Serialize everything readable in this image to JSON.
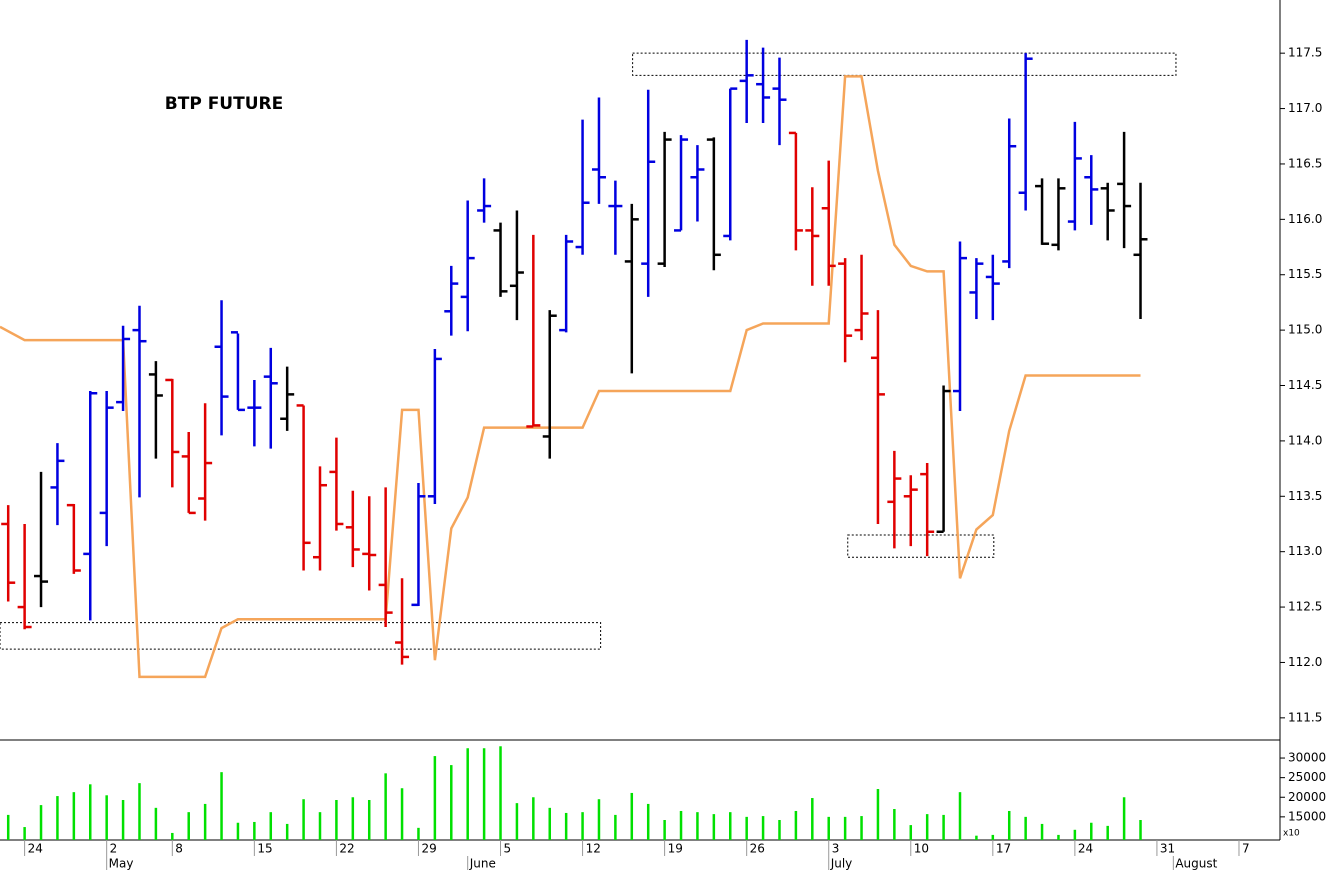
{
  "chart_data": [
    {
      "type": "ohlc",
      "title": "BTP FUTURE",
      "x": [
        0,
        1,
        2,
        3,
        4,
        5,
        6,
        7,
        8,
        9,
        10,
        11,
        12,
        13,
        14,
        15,
        16,
        17,
        18,
        19,
        20,
        21,
        22,
        23,
        24,
        25,
        26,
        27,
        28,
        29,
        30,
        31,
        32,
        33,
        34,
        35,
        36,
        37,
        38,
        39,
        40,
        41,
        42,
        43,
        44,
        45,
        46,
        47,
        48,
        49,
        50,
        51,
        52,
        53,
        54,
        55,
        56,
        57,
        58,
        59,
        60,
        61,
        62,
        63,
        64,
        65,
        66,
        67,
        68,
        69
      ],
      "open": [
        113.25,
        112.5,
        112.78,
        113.58,
        113.42,
        112.98,
        113.35,
        114.35,
        115.0,
        114.6,
        114.55,
        113.86,
        113.48,
        114.85,
        114.98,
        114.3,
        114.58,
        114.2,
        114.32,
        112.95,
        113.72,
        113.22,
        112.98,
        112.7,
        112.18,
        112.52,
        113.5,
        115.17,
        115.3,
        116.08,
        115.9,
        115.4,
        114.13,
        114.04,
        115.0,
        115.75,
        116.45,
        116.12,
        115.62,
        115.6,
        115.6,
        115.9,
        116.38,
        116.72,
        115.85,
        117.25,
        117.22,
        117.18,
        116.78,
        115.9,
        116.1,
        115.6,
        115.0,
        114.75,
        113.45,
        113.5,
        113.7,
        113.18,
        114.45,
        115.34,
        115.48,
        115.62,
        116.24,
        116.3,
        115.77,
        115.98,
        116.38,
        116.28,
        116.32,
        115.68
      ],
      "high": [
        113.42,
        113.25,
        113.72,
        113.98,
        113.43,
        114.45,
        114.45,
        115.04,
        115.22,
        114.72,
        114.56,
        114.08,
        114.34,
        115.27,
        114.97,
        114.55,
        114.84,
        114.67,
        114.32,
        113.77,
        114.03,
        113.55,
        113.5,
        113.58,
        112.76,
        113.62,
        114.83,
        115.58,
        116.17,
        116.37,
        115.97,
        116.08,
        115.86,
        115.18,
        115.86,
        116.9,
        117.1,
        116.35,
        116.14,
        117.17,
        116.79,
        116.76,
        116.67,
        116.74,
        117.18,
        117.62,
        117.55,
        117.46,
        116.78,
        116.29,
        116.53,
        115.65,
        115.68,
        115.18,
        113.91,
        113.69,
        113.8,
        114.5,
        115.8,
        115.65,
        115.68,
        116.91,
        117.5,
        116.37,
        116.37,
        116.88,
        116.58,
        116.33,
        116.79,
        116.33
      ],
      "low": [
        112.55,
        112.3,
        112.5,
        113.24,
        112.8,
        112.38,
        113.05,
        114.27,
        113.49,
        113.84,
        113.58,
        113.35,
        113.28,
        114.05,
        114.28,
        113.95,
        113.93,
        114.09,
        112.83,
        112.83,
        113.19,
        112.86,
        112.65,
        112.32,
        111.98,
        112.51,
        113.43,
        114.95,
        114.99,
        115.97,
        115.3,
        115.09,
        114.13,
        113.84,
        114.98,
        115.68,
        116.14,
        115.68,
        114.61,
        115.3,
        115.57,
        115.9,
        115.98,
        115.54,
        115.81,
        116.87,
        116.87,
        116.67,
        115.72,
        115.4,
        115.4,
        114.71,
        114.91,
        113.25,
        113.03,
        113.05,
        112.96,
        113.18,
        114.27,
        115.1,
        115.09,
        115.56,
        116.08,
        115.77,
        115.72,
        115.9,
        115.95,
        115.81,
        115.74,
        115.1
      ],
      "close": [
        112.72,
        112.32,
        112.73,
        113.82,
        112.83,
        114.43,
        114.3,
        114.92,
        114.9,
        114.41,
        113.9,
        113.35,
        113.8,
        114.4,
        114.28,
        114.3,
        114.52,
        114.42,
        113.08,
        113.6,
        113.25,
        113.02,
        112.97,
        112.45,
        112.05,
        113.5,
        114.74,
        115.42,
        115.65,
        116.12,
        115.35,
        115.52,
        114.14,
        115.13,
        115.8,
        116.15,
        116.38,
        116.12,
        116.0,
        116.52,
        116.72,
        116.72,
        116.45,
        115.68,
        117.18,
        117.3,
        117.1,
        117.08,
        115.9,
        115.85,
        115.58,
        114.95,
        115.15,
        114.42,
        113.66,
        113.56,
        113.18,
        114.45,
        115.65,
        115.6,
        115.42,
        116.66,
        117.45,
        115.78,
        116.28,
        116.55,
        116.27,
        116.08,
        116.12,
        115.82
      ],
      "colors": [
        "#e00000",
        "#e00000",
        "#000000",
        "#0000e0",
        "#e00000",
        "#0000e0",
        "#0000e0",
        "#0000e0",
        "#0000e0",
        "#000000",
        "#e00000",
        "#e00000",
        "#e00000",
        "#0000e0",
        "#0000e0",
        "#0000e0",
        "#0000e0",
        "#000000",
        "#e00000",
        "#e00000",
        "#e00000",
        "#e00000",
        "#e00000",
        "#e00000",
        "#e00000",
        "#0000e0",
        "#0000e0",
        "#0000e0",
        "#0000e0",
        "#0000e0",
        "#000000",
        "#000000",
        "#e00000",
        "#000000",
        "#0000e0",
        "#0000e0",
        "#0000e0",
        "#0000e0",
        "#000000",
        "#0000e0",
        "#000000",
        "#0000e0",
        "#0000e0",
        "#000000",
        "#0000e0",
        "#0000e0",
        "#0000e0",
        "#0000e0",
        "#e00000",
        "#e00000",
        "#e00000",
        "#e00000",
        "#e00000",
        "#e00000",
        "#e00000",
        "#e00000",
        "#e00000",
        "#000000",
        "#0000e0",
        "#0000e0",
        "#0000e0",
        "#0000e0",
        "#0000e0",
        "#000000",
        "#000000",
        "#0000e0",
        "#0000e0",
        "#000000",
        "#000000",
        "#000000"
      ],
      "line": {
        "color": "#f5a55a",
        "x": [
          -0.5,
          1,
          7,
          8,
          12,
          13,
          14,
          23,
          24,
          25,
          26,
          27,
          28,
          29,
          35,
          36,
          44,
          45,
          46,
          50,
          51,
          52,
          53,
          54,
          55,
          56,
          57,
          58,
          59,
          60,
          61,
          62,
          69
        ],
        "values": [
          115.03,
          114.91,
          114.91,
          111.87,
          111.87,
          112.31,
          112.39,
          112.39,
          114.28,
          114.28,
          112.02,
          113.21,
          113.49,
          114.12,
          114.12,
          114.45,
          114.45,
          115.0,
          115.06,
          115.06,
          117.29,
          117.29,
          116.44,
          115.77,
          115.58,
          115.53,
          115.53,
          112.76,
          113.2,
          113.33,
          114.09,
          114.59,
          114.59
        ]
      },
      "zones": [
        {
          "x": [
            -0.5,
            36.1
          ],
          "y": [
            112.12,
            112.36
          ]
        },
        {
          "x": [
            38.05,
            71.16
          ],
          "y": [
            117.3,
            117.5
          ]
        },
        {
          "x": [
            51.16,
            60.06
          ],
          "y": [
            112.95,
            113.15
          ]
        }
      ],
      "xlim": [
        -0.5,
        77.5
      ],
      "ylim": [
        111.3,
        117.98
      ],
      "yticks": [
        111.5,
        {
          "value": 112,
          "label": "112.0"
        },
        112.5,
        {
          "value": 113,
          "label": "113.0"
        },
        113.5,
        {
          "value": 114,
          "label": "114.0"
        },
        114.5,
        {
          "value": 115,
          "label": "115.0"
        },
        115.5,
        {
          "value": 116,
          "label": "116.0"
        },
        116.5,
        {
          "value": 117,
          "label": "117.0"
        },
        117.5
      ]
    },
    {
      "type": "bar",
      "color": "#00e000",
      "unit_note": "x10",
      "x": [
        0,
        1,
        2,
        3,
        4,
        5,
        6,
        7,
        8,
        9,
        10,
        11,
        12,
        13,
        14,
        15,
        16,
        17,
        18,
        19,
        20,
        21,
        22,
        23,
        24,
        25,
        26,
        27,
        28,
        29,
        30,
        31,
        32,
        33,
        34,
        35,
        36,
        37,
        38,
        39,
        40,
        41,
        42,
        43,
        44,
        45,
        46,
        47,
        48,
        49,
        50,
        51,
        52,
        53,
        54,
        55,
        56,
        57,
        58,
        59,
        60,
        61,
        62,
        63,
        64,
        65,
        66,
        67,
        68,
        69
      ],
      "values": [
        15500,
        12400,
        18000,
        20300,
        21300,
        23300,
        20500,
        19300,
        23600,
        17300,
        10900,
        16200,
        18300,
        26400,
        13500,
        13700,
        16200,
        13200,
        19500,
        16200,
        19300,
        20000,
        19300,
        26100,
        22300,
        12200,
        30500,
        28200,
        32500,
        32500,
        33000,
        18500,
        20000,
        17300,
        16000,
        16200,
        19500,
        15500,
        21100,
        18300,
        14200,
        16500,
        16200,
        15700,
        16200,
        15000,
        15200,
        14200,
        16500,
        19800,
        15000,
        15000,
        15200,
        22100,
        17000,
        12900,
        15700,
        15500,
        21300,
        10200,
        10400,
        16500,
        15000,
        13200,
        10400,
        11700,
        13500,
        12700,
        20000,
        14200
      ],
      "xlim": [
        -0.5,
        77.5
      ],
      "ylim": [
        9100,
        34600
      ],
      "yticks": [
        15000,
        20000,
        25000,
        30000
      ],
      "xticks": [
        {
          "value": 1,
          "label": "24"
        },
        {
          "value": 6,
          "label": "2"
        },
        {
          "value": 10,
          "label": "8"
        },
        {
          "value": 15,
          "label": "15"
        },
        {
          "value": 20,
          "label": "22"
        },
        {
          "value": 25,
          "label": "29"
        },
        {
          "value": 30,
          "label": "5"
        },
        {
          "value": 35,
          "label": "12"
        },
        {
          "value": 40,
          "label": "19"
        },
        {
          "value": 45,
          "label": "26"
        },
        {
          "value": 50,
          "label": "3"
        },
        {
          "value": 55,
          "label": "10"
        },
        {
          "value": 60,
          "label": "17"
        },
        {
          "value": 65,
          "label": "24"
        },
        {
          "value": 70,
          "label": "31"
        },
        {
          "value": 75,
          "label": "7"
        }
      ],
      "months": [
        {
          "value": 6,
          "label": "May"
        },
        {
          "value": 28,
          "label": "June"
        },
        {
          "value": 50,
          "label": "July"
        },
        {
          "value": 71,
          "label": "August"
        }
      ]
    }
  ]
}
